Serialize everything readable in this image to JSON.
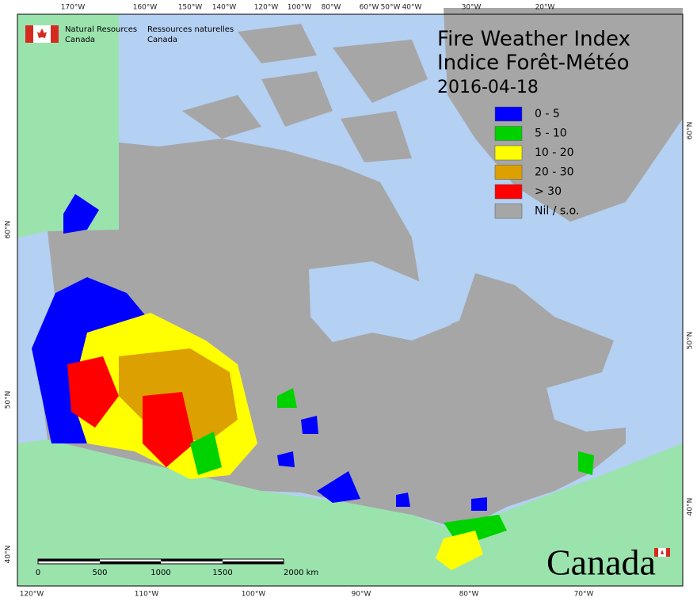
{
  "header": {
    "agency_en": [
      "Natural Resources",
      "Canada"
    ],
    "agency_fr": [
      "Ressources naturelles",
      "Canada"
    ]
  },
  "title": {
    "en": "Fire Weather Index",
    "fr": "Indice Forêt-Météo",
    "date": "2016-04-18"
  },
  "legend": [
    {
      "label": "0 - 5",
      "color": "#0000ff"
    },
    {
      "label": "5 - 10",
      "color": "#00d200"
    },
    {
      "label": "10 - 20",
      "color": "#ffff00"
    },
    {
      "label": "20 - 30",
      "color": "#dca000"
    },
    {
      "label": "> 30",
      "color": "#ff0000"
    },
    {
      "label": "Nil / s.o.",
      "color": "#a6a6a6"
    }
  ],
  "graticule": {
    "top": [
      "170°W",
      "160°W",
      "150°W",
      "140°W",
      "120°W",
      "100°W",
      "80°W",
      "60°W",
      "50°W",
      "40°W",
      "30°W",
      "20°W"
    ],
    "bottom": [
      "120°W",
      "110°W",
      "100°W",
      "90°W",
      "80°W",
      "70°W"
    ],
    "left": [
      "60°N",
      "50°N",
      "40°N"
    ],
    "right": [
      "60°N",
      "50°N",
      "40°N"
    ]
  },
  "scale_bar": {
    "labels": [
      "0",
      "500",
      "1000",
      "1500",
      "2000 km"
    ]
  },
  "wordmark": "Canada"
}
